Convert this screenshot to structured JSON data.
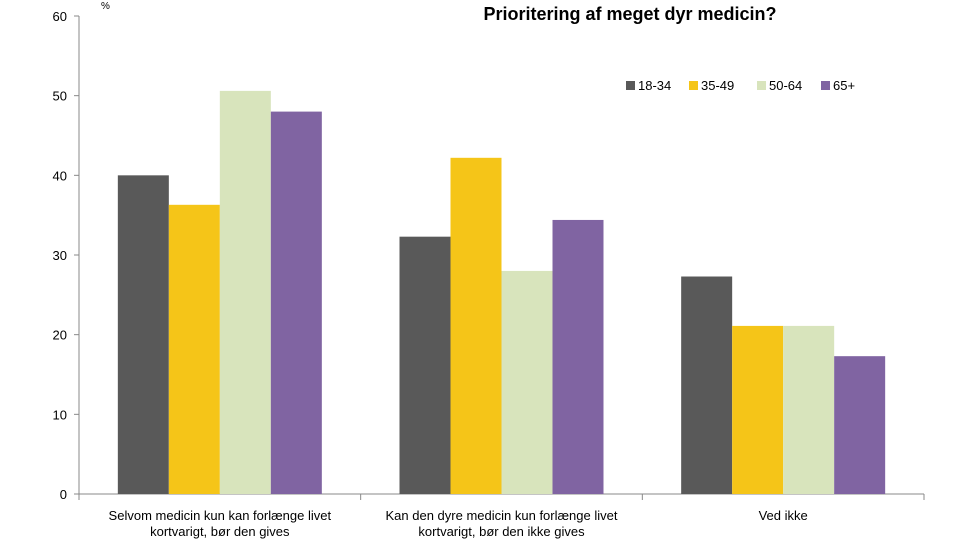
{
  "chart_data": {
    "type": "bar",
    "title": "Prioritering af meget dyr medicin?",
    "ylabel": "%",
    "xlabel": "",
    "ylim": [
      0,
      60
    ],
    "yticks": [
      "0",
      "10",
      "20",
      "30",
      "40",
      "50",
      "60"
    ],
    "grid": false,
    "legend_position": "top-right",
    "categories": [
      [
        "Selvom medicin kun kan forlænge livet",
        "kortvarigt, bør den gives"
      ],
      [
        "Kan den dyre medicin kun forlænge livet",
        "kortvarigt, bør den ikke gives"
      ],
      [
        "Ved ikke"
      ]
    ],
    "series": [
      {
        "name": "18-34",
        "color": "#595959",
        "values": [
          40,
          32.3,
          27.3
        ]
      },
      {
        "name": "35-49",
        "color": "#f5c518",
        "values": [
          36.3,
          42.2,
          21.1
        ]
      },
      {
        "name": "50-64",
        "color": "#d8e4bc",
        "values": [
          50.6,
          28,
          21.1
        ]
      },
      {
        "name": "65+",
        "color": "#8064a2",
        "values": [
          48,
          34.4,
          17.3
        ]
      }
    ]
  }
}
